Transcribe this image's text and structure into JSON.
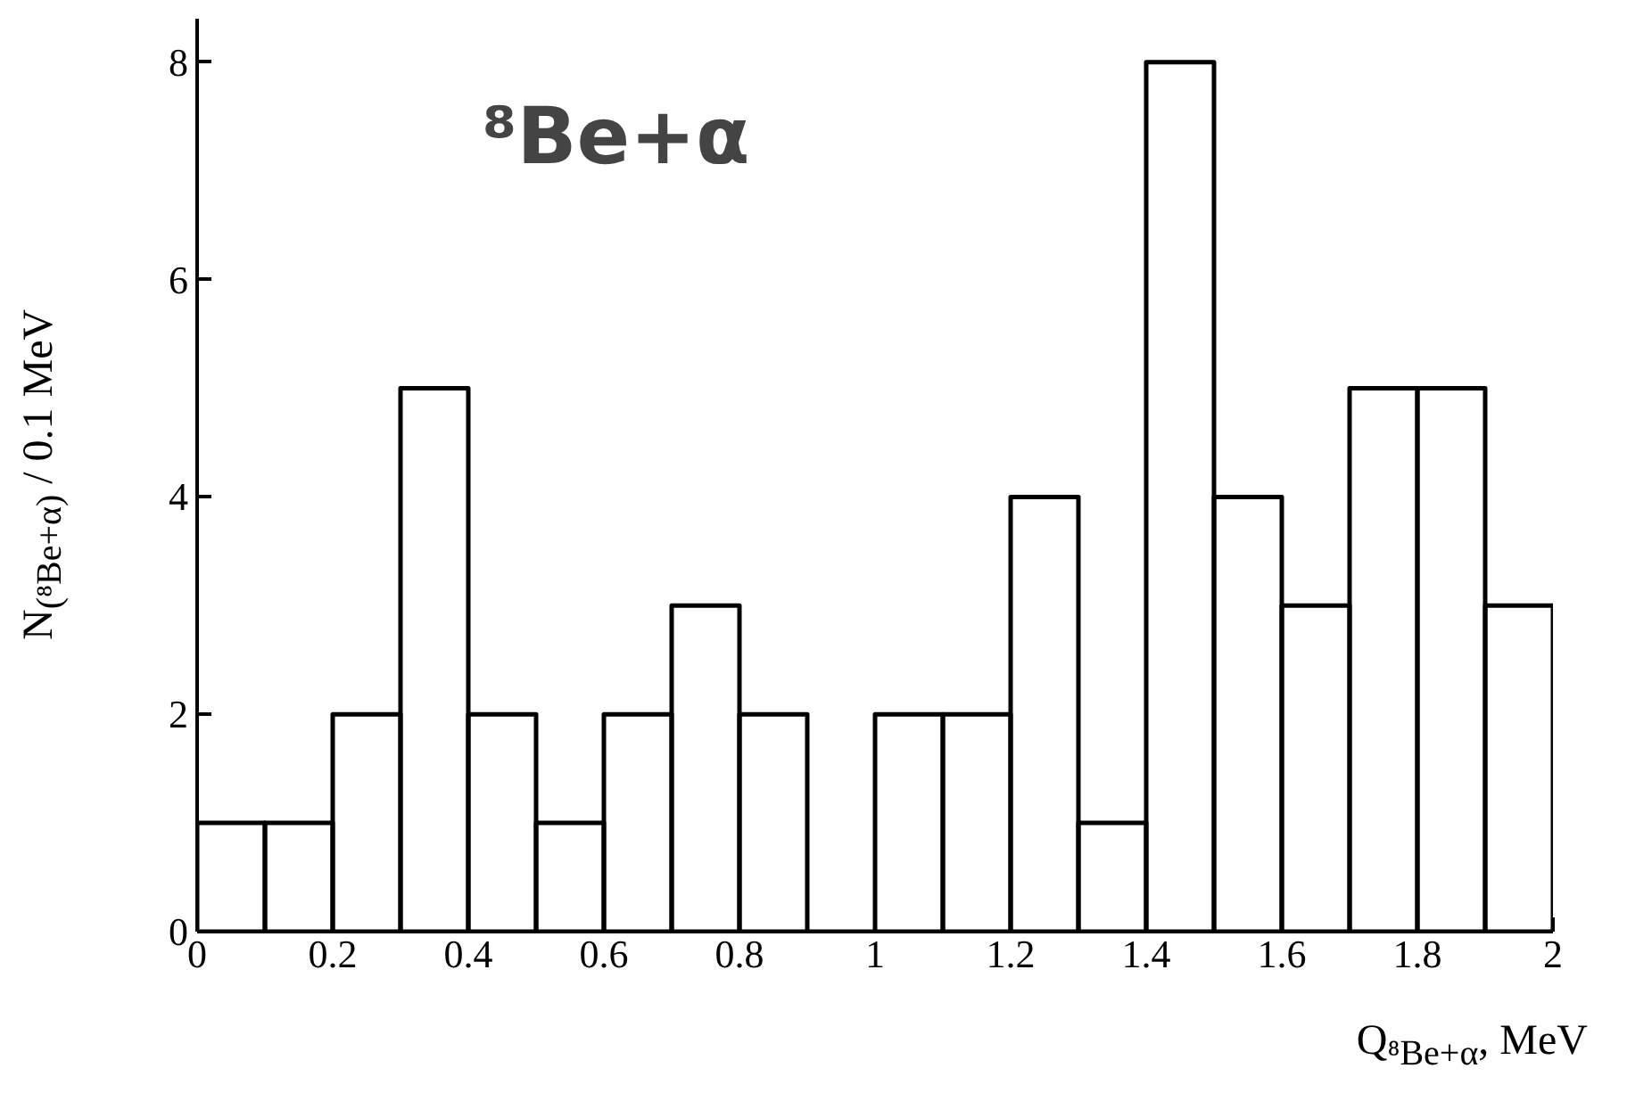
{
  "chart_data": {
    "type": "histogram",
    "bins": [
      0,
      0.1,
      0.2,
      0.3,
      0.4,
      0.5,
      0.6,
      0.7,
      0.8,
      0.9,
      1.0,
      1.1,
      1.2,
      1.3,
      1.4,
      1.5,
      1.6,
      1.7,
      1.8,
      1.9,
      2.0
    ],
    "values": [
      1,
      1,
      2,
      5,
      2,
      1,
      2,
      3,
      2,
      0,
      2,
      2,
      4,
      1,
      8,
      4,
      3,
      5,
      5,
      3
    ],
    "color": "#000000",
    "xlabel": "Q$_{⁸Be+α}$, MeV",
    "ylabel": "N$_{(⁸Be+α)}$ / 0.1 MeV",
    "annotations": [
      "⁸Be+α"
    ],
    "xlim": [
      0,
      2
    ],
    "ylim": [
      0,
      8.4
    ],
    "xticks": [
      0,
      0.2,
      0.4,
      0.6,
      0.8,
      1,
      1.2,
      1.4,
      1.6,
      1.8,
      2
    ],
    "yticks": [
      0,
      2,
      4,
      6,
      8
    ],
    "grid": false
  }
}
